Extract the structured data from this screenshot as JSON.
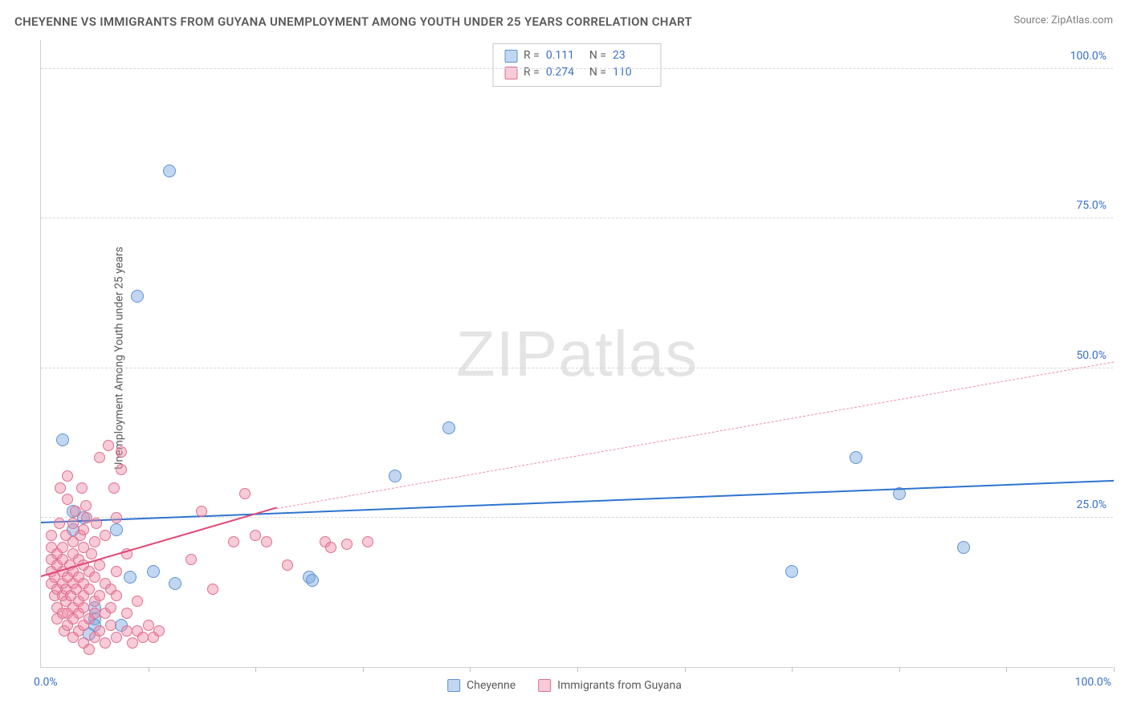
{
  "title": "CHEYENNE VS IMMIGRANTS FROM GUYANA UNEMPLOYMENT AMONG YOUTH UNDER 25 YEARS CORRELATION CHART",
  "source": "Source: ZipAtlas.com",
  "y_axis_label": "Unemployment Among Youth under 25 years",
  "watermark": "ZIPatlas",
  "chart": {
    "type": "scatter",
    "xlim": [
      0,
      100
    ],
    "ylim": [
      0,
      105
    ],
    "x_tick_labels": {
      "min": "0.0%",
      "max": "100.0%"
    },
    "y_ticks": [
      {
        "v": 25,
        "label": "25.0%"
      },
      {
        "v": 50,
        "label": "50.0%"
      },
      {
        "v": 75,
        "label": "75.0%"
      },
      {
        "v": 100,
        "label": "100.0%"
      }
    ],
    "x_tick_marks": [
      10,
      20,
      30,
      40,
      50,
      60,
      70,
      80,
      90,
      100
    ],
    "background_color": "#ffffff",
    "grid_color": "#d8d8d8",
    "axis_color": "#d0d0d0",
    "tick_label_color": "#3a6fc9"
  },
  "series": [
    {
      "name": "Cheyenne",
      "color_fill": "rgba(118,167,224,0.45)",
      "color_stroke": "#5f93cf",
      "marker_radius": 8,
      "stats": {
        "R": "0.111",
        "N": "23"
      },
      "trend": {
        "x1": 0,
        "y1": 24,
        "x2": 100,
        "y2": 31,
        "color": "#2f74d0",
        "style": "solid",
        "width": 2
      },
      "points": [
        [
          2,
          38
        ],
        [
          3,
          26
        ],
        [
          3,
          23
        ],
        [
          4,
          25
        ],
        [
          5,
          10
        ],
        [
          5,
          8
        ],
        [
          5,
          7
        ],
        [
          7,
          23
        ],
        [
          7.5,
          7
        ],
        [
          8.3,
          15
        ],
        [
          10.5,
          16
        ],
        [
          12,
          83
        ],
        [
          12.5,
          14
        ],
        [
          9,
          62
        ],
        [
          25,
          15
        ],
        [
          25.3,
          14.5
        ],
        [
          33,
          32
        ],
        [
          38,
          40
        ],
        [
          70,
          16
        ],
        [
          76,
          35
        ],
        [
          80,
          29
        ],
        [
          86,
          20
        ],
        [
          4.5,
          5.5
        ]
      ]
    },
    {
      "name": "Immigrants from Guyana",
      "color_fill": "rgba(236,132,159,0.42)",
      "color_stroke": "#e06f8f",
      "marker_radius": 7,
      "stats": {
        "R": "0.274",
        "N": "110"
      },
      "trend_solid": {
        "x1": 0,
        "y1": 15,
        "x2": 22,
        "y2": 26.5,
        "color": "#e04a77",
        "style": "solid",
        "width": 2
      },
      "trend_dash": {
        "x1": 22,
        "y1": 26.5,
        "x2": 100,
        "y2": 51,
        "color": "#eb8fa6",
        "style": "dashed",
        "width": 1.5
      },
      "points": [
        [
          1,
          14
        ],
        [
          1,
          16
        ],
        [
          1,
          18
        ],
        [
          1,
          20
        ],
        [
          1,
          22
        ],
        [
          1.3,
          12
        ],
        [
          1.3,
          15
        ],
        [
          1.5,
          8
        ],
        [
          1.5,
          10
        ],
        [
          1.5,
          13
        ],
        [
          1.5,
          17
        ],
        [
          1.5,
          19
        ],
        [
          1.7,
          24
        ],
        [
          1.8,
          30
        ],
        [
          2,
          9
        ],
        [
          2,
          12
        ],
        [
          2,
          14
        ],
        [
          2,
          16
        ],
        [
          2,
          18
        ],
        [
          2,
          20
        ],
        [
          2.2,
          6
        ],
        [
          2.3,
          11
        ],
        [
          2.3,
          13
        ],
        [
          2.3,
          22
        ],
        [
          2.5,
          7
        ],
        [
          2.5,
          9
        ],
        [
          2.5,
          15
        ],
        [
          2.5,
          28
        ],
        [
          2.5,
          32
        ],
        [
          2.7,
          17
        ],
        [
          2.8,
          12
        ],
        [
          3,
          5
        ],
        [
          3,
          8
        ],
        [
          3,
          10
        ],
        [
          3,
          14
        ],
        [
          3,
          16
        ],
        [
          3,
          19
        ],
        [
          3,
          21
        ],
        [
          3,
          24
        ],
        [
          3.2,
          26
        ],
        [
          3.3,
          13
        ],
        [
          3.5,
          6
        ],
        [
          3.5,
          9
        ],
        [
          3.5,
          11
        ],
        [
          3.5,
          15
        ],
        [
          3.5,
          18
        ],
        [
          3.7,
          22
        ],
        [
          4,
          4
        ],
        [
          4,
          7
        ],
        [
          4,
          10
        ],
        [
          4,
          12
        ],
        [
          4,
          14
        ],
        [
          4,
          17
        ],
        [
          4,
          20
        ],
        [
          4,
          23
        ],
        [
          4.2,
          27
        ],
        [
          4.3,
          25
        ],
        [
          4.5,
          3
        ],
        [
          4.5,
          8
        ],
        [
          4.5,
          13
        ],
        [
          4.5,
          16
        ],
        [
          4.7,
          19
        ],
        [
          5,
          5
        ],
        [
          5,
          9
        ],
        [
          5,
          11
        ],
        [
          5,
          15
        ],
        [
          5,
          21
        ],
        [
          5.2,
          24
        ],
        [
          5.5,
          6
        ],
        [
          5.5,
          12
        ],
        [
          5.5,
          17
        ],
        [
          5.5,
          35
        ],
        [
          6,
          4
        ],
        [
          6,
          9
        ],
        [
          6,
          14
        ],
        [
          6,
          22
        ],
        [
          6.3,
          37
        ],
        [
          6.5,
          7
        ],
        [
          6.5,
          10
        ],
        [
          6.5,
          13
        ],
        [
          7,
          5
        ],
        [
          7,
          12
        ],
        [
          7,
          16
        ],
        [
          7,
          25
        ],
        [
          7.5,
          33
        ],
        [
          7.5,
          36
        ],
        [
          8,
          6
        ],
        [
          8,
          9
        ],
        [
          8,
          19
        ],
        [
          8.5,
          4
        ],
        [
          9,
          6
        ],
        [
          9,
          11
        ],
        [
          9.5,
          5
        ],
        [
          10,
          7
        ],
        [
          10.5,
          5
        ],
        [
          11,
          6
        ],
        [
          16,
          13
        ],
        [
          18,
          21
        ],
        [
          19,
          29
        ],
        [
          20,
          22
        ],
        [
          21,
          21
        ],
        [
          23,
          17
        ],
        [
          26.5,
          21
        ],
        [
          27,
          20
        ],
        [
          28.5,
          20.5
        ],
        [
          30.5,
          21
        ],
        [
          14,
          18
        ],
        [
          15,
          26
        ],
        [
          6.8,
          30
        ],
        [
          3.8,
          30
        ]
      ]
    }
  ],
  "legend": {
    "series1": "Cheyenne",
    "series2": "Immigrants from Guyana"
  }
}
